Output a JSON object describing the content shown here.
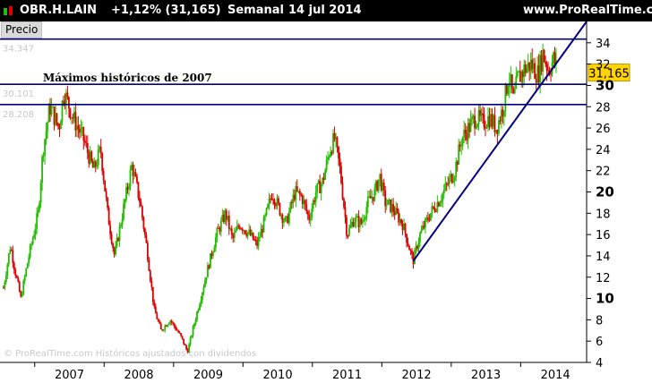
{
  "header": {
    "ticker": "OBR.H.LAIN",
    "change": "+1,12% (31,165)",
    "period": "Semanal",
    "date": "14 jul 2014",
    "site": "www.ProRealTime.com",
    "icon": "candlestick-icon"
  },
  "panel_label": "Precio",
  "watermark": "© ProRealTime.com  Históricos ajustados con dividendos",
  "colors": {
    "up": "#22bb00",
    "down": "#dd0000",
    "line": "#000080",
    "badge": "#ffd400"
  },
  "chart_data": {
    "type": "candlestick",
    "frequency": "weekly",
    "ylim": [
      4,
      36
    ],
    "y_ticks": [
      4,
      6,
      8,
      10,
      12,
      14,
      16,
      18,
      20,
      22,
      24,
      26,
      28,
      30,
      32,
      34
    ],
    "x_labels": [
      "2007",
      "2008",
      "2009",
      "2010",
      "2011",
      "2012",
      "2013",
      "2014"
    ],
    "x_range": [
      2006.5,
      2014.95
    ],
    "last_price": "31,165",
    "close_path": [
      [
        2006.55,
        11.0
      ],
      [
        2006.65,
        15.0
      ],
      [
        2006.72,
        12.5
      ],
      [
        2006.8,
        10.0
      ],
      [
        2006.9,
        13.5
      ],
      [
        2007.05,
        18.0
      ],
      [
        2007.12,
        24.0
      ],
      [
        2007.22,
        28.0
      ],
      [
        2007.35,
        26.0
      ],
      [
        2007.42,
        29.5
      ],
      [
        2007.55,
        27.0
      ],
      [
        2007.7,
        25.0
      ],
      [
        2007.85,
        22.0
      ],
      [
        2007.95,
        24.0
      ],
      [
        2008.05,
        18.0
      ],
      [
        2008.15,
        14.0
      ],
      [
        2008.28,
        18.5
      ],
      [
        2008.4,
        22.5
      ],
      [
        2008.52,
        19.0
      ],
      [
        2008.62,
        14.5
      ],
      [
        2008.72,
        9.0
      ],
      [
        2008.82,
        7.0
      ],
      [
        2008.95,
        8.0
      ],
      [
        2009.1,
        6.5
      ],
      [
        2009.2,
        5.0
      ],
      [
        2009.35,
        9.0
      ],
      [
        2009.5,
        13.0
      ],
      [
        2009.62,
        16.0
      ],
      [
        2009.75,
        18.0
      ],
      [
        2009.85,
        15.5
      ],
      [
        2009.95,
        17.0
      ],
      [
        2010.1,
        16.0
      ],
      [
        2010.2,
        15.0
      ],
      [
        2010.32,
        17.5
      ],
      [
        2010.42,
        20.0
      ],
      [
        2010.55,
        18.0
      ],
      [
        2010.62,
        17.0
      ],
      [
        2010.75,
        20.0
      ],
      [
        2010.85,
        19.5
      ],
      [
        2010.95,
        17.5
      ],
      [
        2011.05,
        20.0
      ],
      [
        2011.15,
        21.0
      ],
      [
        2011.25,
        24.0
      ],
      [
        2011.32,
        25.0
      ],
      [
        2011.4,
        22.0
      ],
      [
        2011.5,
        16.0
      ],
      [
        2011.6,
        17.5
      ],
      [
        2011.7,
        17.0
      ],
      [
        2011.8,
        19.0
      ],
      [
        2011.9,
        20.0
      ],
      [
        2011.97,
        21.5
      ],
      [
        2012.05,
        19.0
      ],
      [
        2012.15,
        18.5
      ],
      [
        2012.3,
        17.0
      ],
      [
        2012.45,
        13.5
      ],
      [
        2012.55,
        16.0
      ],
      [
        2012.7,
        18.0
      ],
      [
        2012.85,
        19.5
      ],
      [
        2012.97,
        21.0
      ],
      [
        2013.05,
        22.0
      ],
      [
        2013.15,
        25.0
      ],
      [
        2013.25,
        26.0
      ],
      [
        2013.35,
        27.0
      ],
      [
        2013.45,
        26.5
      ],
      [
        2013.55,
        27.0
      ],
      [
        2013.65,
        26.0
      ],
      [
        2013.75,
        28.0
      ],
      [
        2013.83,
        31.0
      ],
      [
        2013.9,
        28.5
      ],
      [
        2013.95,
        30.5
      ],
      [
        2014.05,
        31.5
      ],
      [
        2014.15,
        32.0
      ],
      [
        2014.25,
        31.0
      ],
      [
        2014.32,
        33.0
      ],
      [
        2014.4,
        31.5
      ],
      [
        2014.48,
        32.5
      ],
      [
        2014.53,
        31.2
      ]
    ],
    "annotations": [
      {
        "label": "34.347",
        "value": 34.347,
        "kind": "horizontal-line"
      },
      {
        "label": "30.101",
        "value": 30.101,
        "kind": "horizontal-line"
      },
      {
        "label": "28.208",
        "value": 28.208,
        "kind": "horizontal-line"
      },
      {
        "label": "Máximos históricos de 2007",
        "kind": "text"
      },
      {
        "label": "",
        "kind": "trendline",
        "from": [
          2012.45,
          13.5
        ],
        "to": [
          2014.95,
          36.0
        ]
      }
    ]
  }
}
